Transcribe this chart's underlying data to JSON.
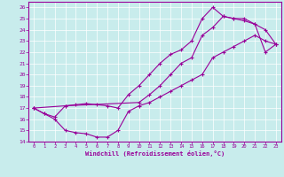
{
  "xlabel": "Windchill (Refroidissement éolien,°C)",
  "bg_color": "#c8ecec",
  "line_color": "#990099",
  "grid_color": "#ffffff",
  "xlim": [
    -0.5,
    23.5
  ],
  "ylim": [
    14,
    26.5
  ],
  "xticks": [
    0,
    1,
    2,
    3,
    4,
    5,
    6,
    7,
    8,
    9,
    10,
    11,
    12,
    13,
    14,
    15,
    16,
    17,
    18,
    19,
    20,
    21,
    22,
    23
  ],
  "yticks": [
    14,
    15,
    16,
    17,
    18,
    19,
    20,
    21,
    22,
    23,
    24,
    25,
    26
  ],
  "line1_x": [
    0,
    1,
    2,
    3,
    4,
    5,
    6,
    7,
    8,
    9,
    10,
    11,
    12,
    13,
    14,
    15,
    16,
    17,
    18,
    19,
    20,
    21,
    22,
    23
  ],
  "line1_y": [
    17.0,
    16.5,
    16.0,
    15.0,
    14.8,
    14.7,
    14.4,
    14.4,
    15.0,
    16.7,
    17.2,
    17.5,
    18.0,
    18.5,
    19.0,
    19.5,
    20.0,
    21.5,
    22.0,
    22.5,
    23.0,
    23.5,
    23.0,
    22.7
  ],
  "line2_x": [
    0,
    1,
    2,
    3,
    4,
    5,
    6,
    7,
    8,
    9,
    10,
    11,
    12,
    13,
    14,
    15,
    16,
    17,
    18,
    19,
    20,
    21,
    22,
    23
  ],
  "line2_y": [
    17.0,
    16.5,
    16.2,
    17.2,
    17.3,
    17.4,
    17.3,
    17.2,
    17.0,
    18.2,
    19.0,
    20.0,
    21.0,
    21.8,
    22.2,
    23.0,
    25.0,
    26.0,
    25.2,
    25.0,
    24.8,
    24.5,
    24.0,
    22.7
  ],
  "line3_x": [
    0,
    3,
    10,
    11,
    12,
    13,
    14,
    15,
    16,
    17,
    18,
    19,
    20,
    21,
    22,
    23
  ],
  "line3_y": [
    17.0,
    17.2,
    17.5,
    18.2,
    19.0,
    20.0,
    21.0,
    21.5,
    23.5,
    24.2,
    25.2,
    25.0,
    25.0,
    24.5,
    22.0,
    22.7
  ]
}
